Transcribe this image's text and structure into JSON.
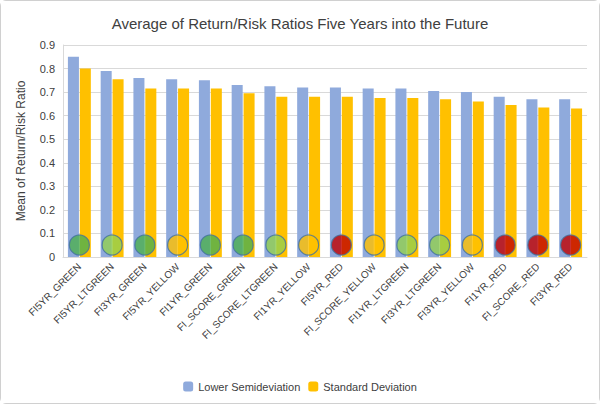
{
  "chart_data": {
    "type": "bar",
    "title": "Average of Return/Risk Ratios Five Years into the Future",
    "y_label": "Mean of Return/Risk Ratio",
    "categories": [
      "FI5YR_GREEN",
      "FI5YR_LTGREEN",
      "FI3YR_GREEN",
      "FI5YR_YELLOW",
      "FI1YR_GREEN",
      "FI_SCORE_GREEN",
      "FI_SCORE_LTGREEN",
      "FI1YR_YELLOW",
      "FI5YR_RED",
      "FI_SCORE_YELLOW",
      "FI1YR_LTGREEN",
      "FI3YR_LTGREEN",
      "FI3YR_YELLOW",
      "FI1YR_RED",
      "FI_SCORE_RED",
      "FI3YR_RED"
    ],
    "series": [
      {
        "name": "Lower Semideviation",
        "color": "#8faadc",
        "values": [
          0.85,
          0.79,
          0.76,
          0.755,
          0.75,
          0.73,
          0.725,
          0.72,
          0.72,
          0.715,
          0.715,
          0.705,
          0.7,
          0.68,
          0.67,
          0.67
        ]
      },
      {
        "name": "Standard Deviation",
        "color": "#ffc000",
        "values": [
          0.8,
          0.755,
          0.715,
          0.715,
          0.715,
          0.695,
          0.68,
          0.68,
          0.68,
          0.675,
          0.675,
          0.67,
          0.66,
          0.645,
          0.635,
          0.63
        ]
      }
    ],
    "colors": [
      "#4caf50",
      "#92d050",
      "#4caf50",
      "#ffc000",
      "#4caf50",
      "#4caf50",
      "#92d050",
      "#ffc000",
      "#c00000",
      "#ffc000",
      "#92d050",
      "#92d050",
      "#ffc000",
      "#c00000",
      "#c00000",
      "#c00000"
    ],
    "ylim": [
      0,
      0.9
    ],
    "yticks": [
      0,
      0.1,
      0.2,
      0.3,
      0.4,
      0.5,
      0.6,
      0.7,
      0.8,
      0.9
    ],
    "grid": true,
    "legend": "bottom"
  }
}
